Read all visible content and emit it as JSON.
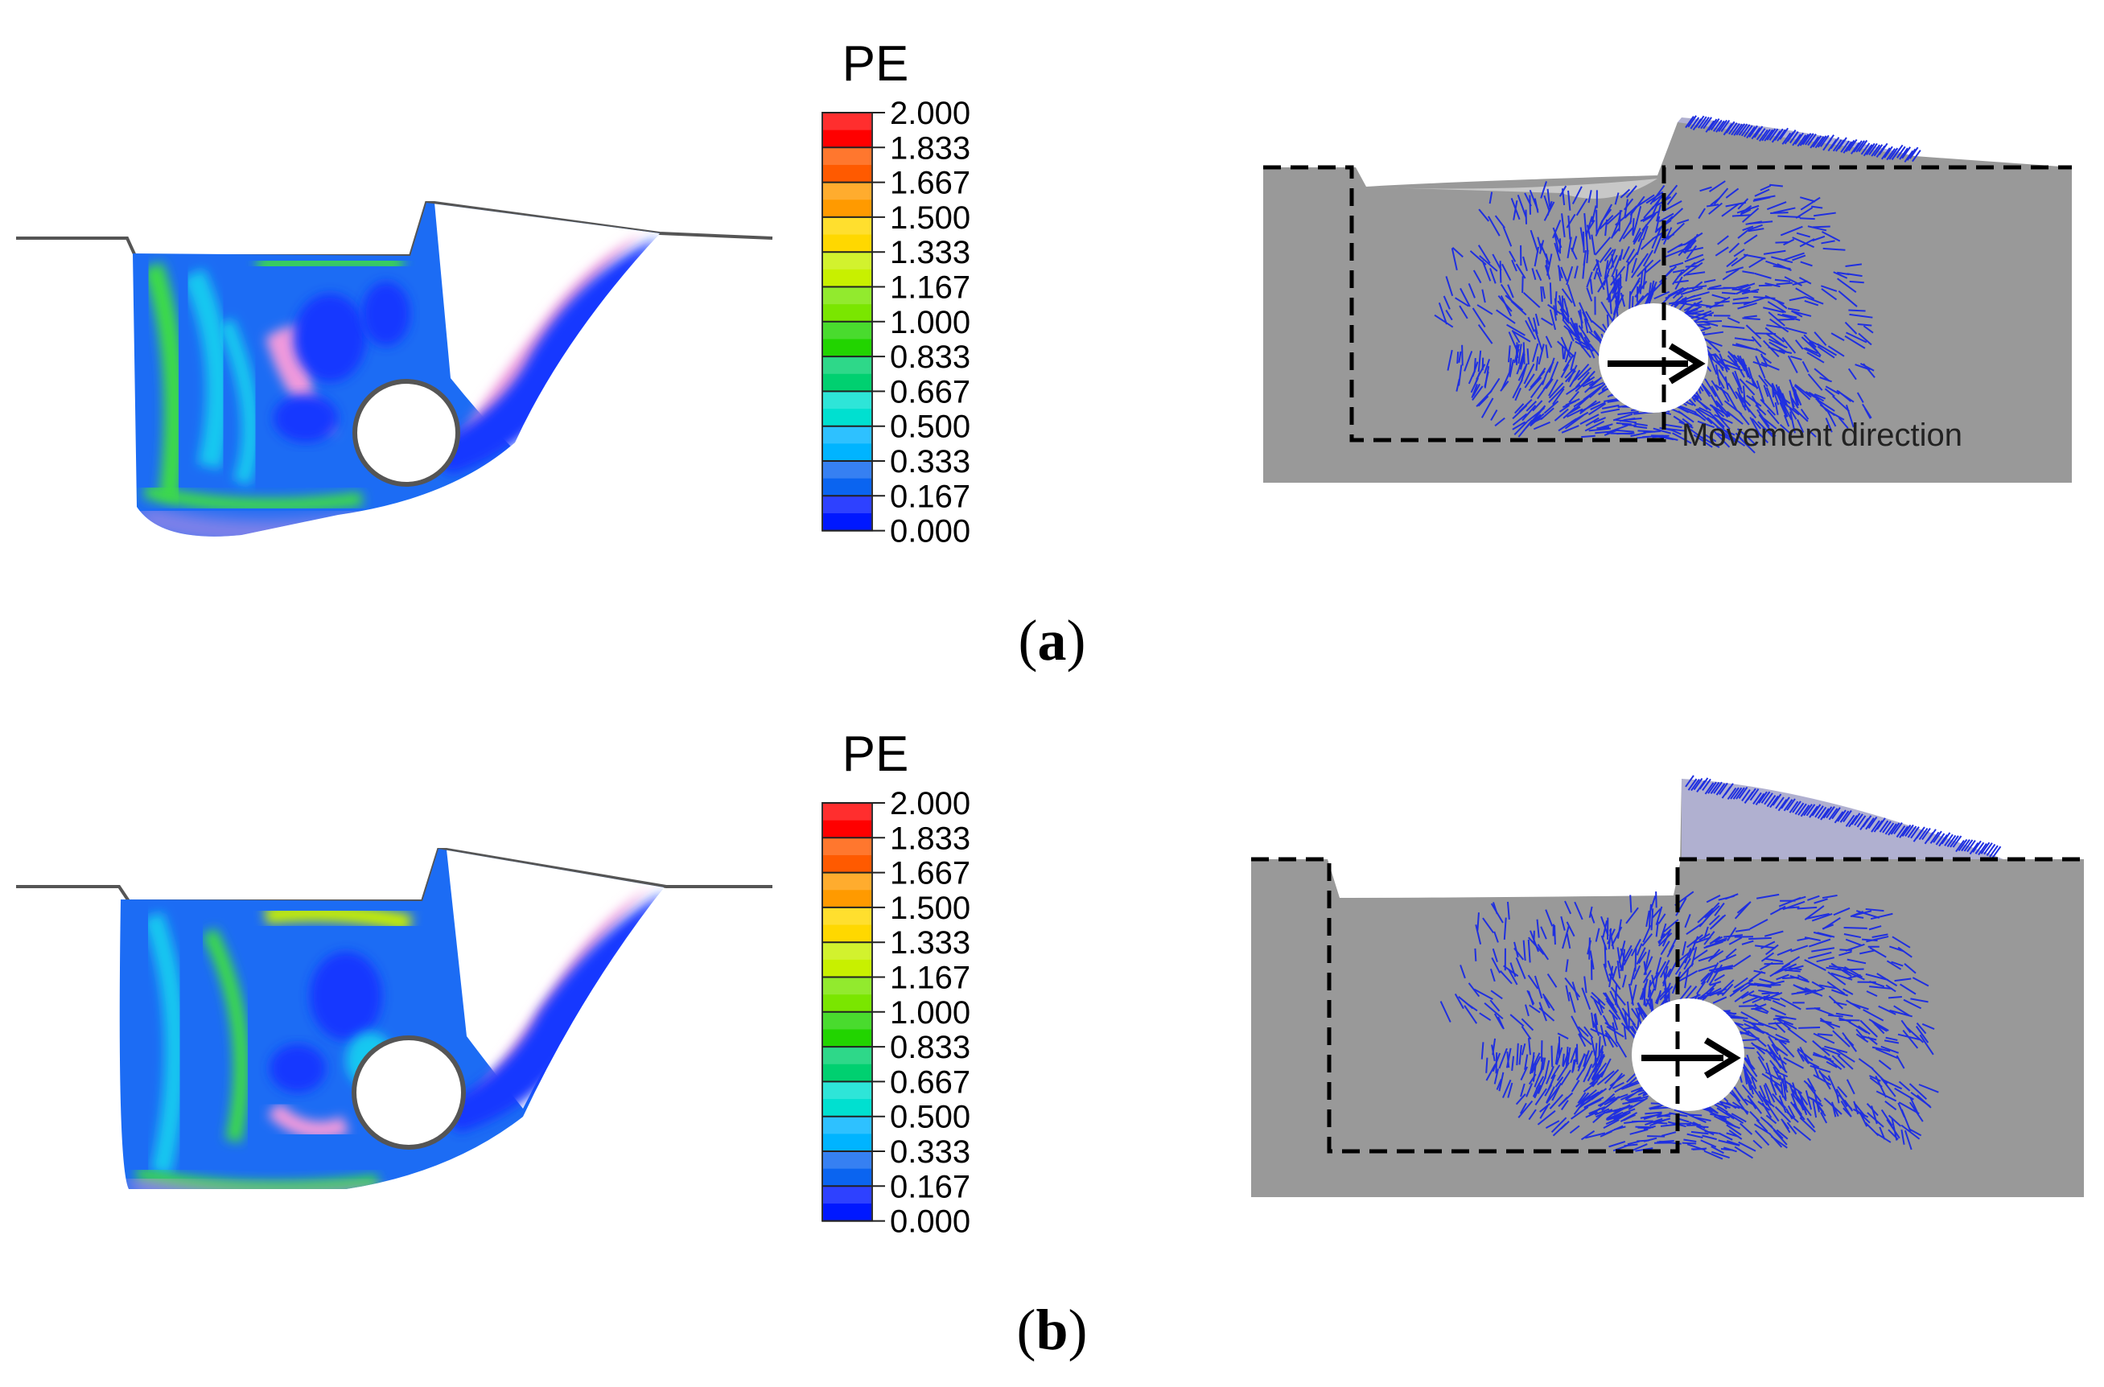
{
  "legend": {
    "title": "PE",
    "ticks": [
      "2.000",
      "1.833",
      "1.667",
      "1.500",
      "1.333",
      "1.167",
      "1.000",
      "0.833",
      "0.667",
      "0.500",
      "0.333",
      "0.167",
      "0.000"
    ],
    "colors_top_to_bottom": [
      "#ff0000",
      "#ff5a00",
      "#ff9a00",
      "#ffd800",
      "#c8f000",
      "#7ae600",
      "#22d400",
      "#00d070",
      "#00e0d0",
      "#00b4ff",
      "#0a64f0",
      "#0018ff",
      "#b050ff",
      "#ffffff"
    ]
  },
  "panels": [
    {
      "id": "a",
      "caption_open": "(",
      "caption_letter": "a",
      "caption_close": ")",
      "annotation": "Movement direction",
      "pipe_diameter_ratio": 0.07
    },
    {
      "id": "b",
      "caption_open": "(",
      "caption_letter": "b",
      "caption_close": ")",
      "annotation": "",
      "pipe_diameter_ratio": 0.08
    }
  ],
  "colors": {
    "soil_gray": "#999999",
    "vector_blue": "#1f2fe0",
    "contour_deep_blue": "#1238ff",
    "contour_mid_blue": "#1c6cf4",
    "contour_cyan": "#17c8f0",
    "contour_green": "#3cdc46",
    "contour_pink": "#f09adc",
    "arrow": "#000000"
  }
}
